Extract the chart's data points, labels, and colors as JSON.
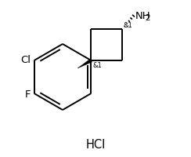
{
  "bg_color": "#ffffff",
  "hcl_text": "HCl",
  "cl_text": "Cl",
  "f_text": "F",
  "stereo1": "&1",
  "stereo2": "&1",
  "line_color": "#000000",
  "line_width": 1.4,
  "font_size_label": 9.5,
  "font_size_hcl": 10.5,
  "font_size_stereo": 6.0,
  "font_size_nh2": 9.5,
  "font_size_sub": 7.5
}
